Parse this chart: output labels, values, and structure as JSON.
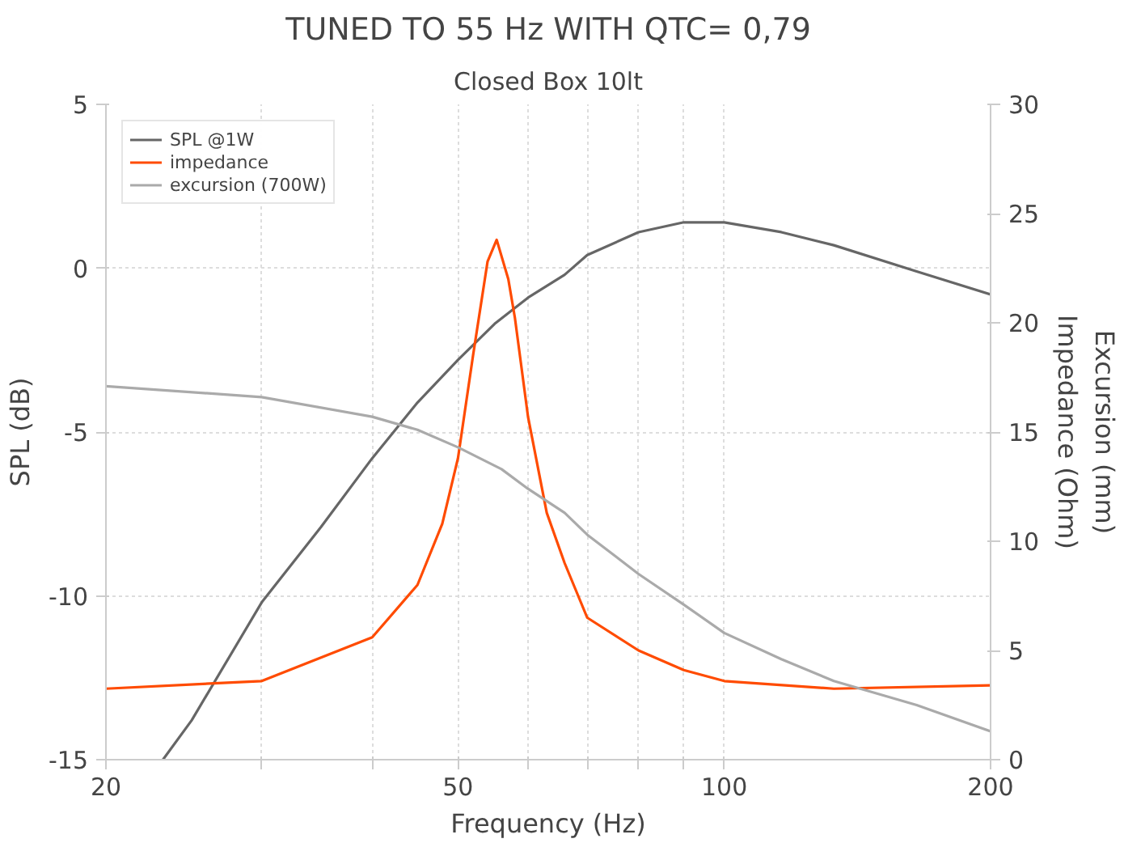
{
  "chart_data": {
    "type": "line",
    "title": "TUNED TO 55 Hz WITH QTC= 0,79",
    "subtitle": "Closed Box 10lt",
    "xlabel": "Frequency (Hz)",
    "ylabel": "SPL (dB)",
    "y2label": "Excursion (mm)\nImpedance (Ohm)",
    "log": "x",
    "xlim": [
      20,
      200
    ],
    "xticks": [
      20,
      {
        "value": 30,
        "label": null
      },
      {
        "value": 40,
        "label": null
      },
      50,
      {
        "value": 60,
        "label": null
      },
      {
        "value": 70,
        "label": null
      },
      {
        "value": 80,
        "label": null
      },
      {
        "value": 90,
        "label": null
      },
      100,
      200
    ],
    "ylim": [
      -15,
      5
    ],
    "yticks": [
      -15,
      -10,
      -5,
      0,
      5
    ],
    "y2lim": [
      0,
      30
    ],
    "y2ticks": [
      0,
      5,
      10,
      15,
      20,
      25,
      30
    ],
    "grid": true,
    "legend": "top left",
    "line_style": "solid",
    "series": [
      {
        "name": "SPL @1W",
        "color": "#666666",
        "x": [
          23.2,
          25,
          30,
          35,
          40,
          45,
          50,
          55,
          60,
          66,
          70,
          80,
          90,
          100,
          116,
          133,
          165,
          200
        ],
        "values": [
          -15,
          -13.8,
          -10.2,
          -7.9,
          -5.8,
          -4.1,
          -2.8,
          -1.7,
          -0.9,
          -0.2,
          0.4,
          1.1,
          1.4,
          1.4,
          1.1,
          0.7,
          -0.1,
          -0.8
        ]
      },
      {
        "name": "impedance",
        "color": "#ff4b00",
        "axis": "y2",
        "x": [
          20,
          30,
          40,
          45,
          48,
          50,
          52,
          54,
          55.3,
          57,
          58,
          60,
          63,
          66,
          70,
          80,
          90,
          100,
          133,
          200
        ],
        "values": [
          3.25,
          3.6,
          5.6,
          8.0,
          10.8,
          13.8,
          18.5,
          22.8,
          23.8,
          22.0,
          20.2,
          15.7,
          11.3,
          9.0,
          6.5,
          5.0,
          4.1,
          3.6,
          3.25,
          3.4
        ]
      },
      {
        "name": "excursion (700W)",
        "color": "#aaaaaa",
        "axis": "y2",
        "x": [
          20,
          30,
          40,
          45,
          50,
          56,
          60,
          66,
          70,
          80,
          90,
          100,
          116,
          133,
          165,
          200
        ],
        "values": [
          17.1,
          16.6,
          15.7,
          15.1,
          14.3,
          13.3,
          12.4,
          11.3,
          10.3,
          8.5,
          7.1,
          5.8,
          4.6,
          3.6,
          2.5,
          1.3
        ]
      }
    ]
  }
}
